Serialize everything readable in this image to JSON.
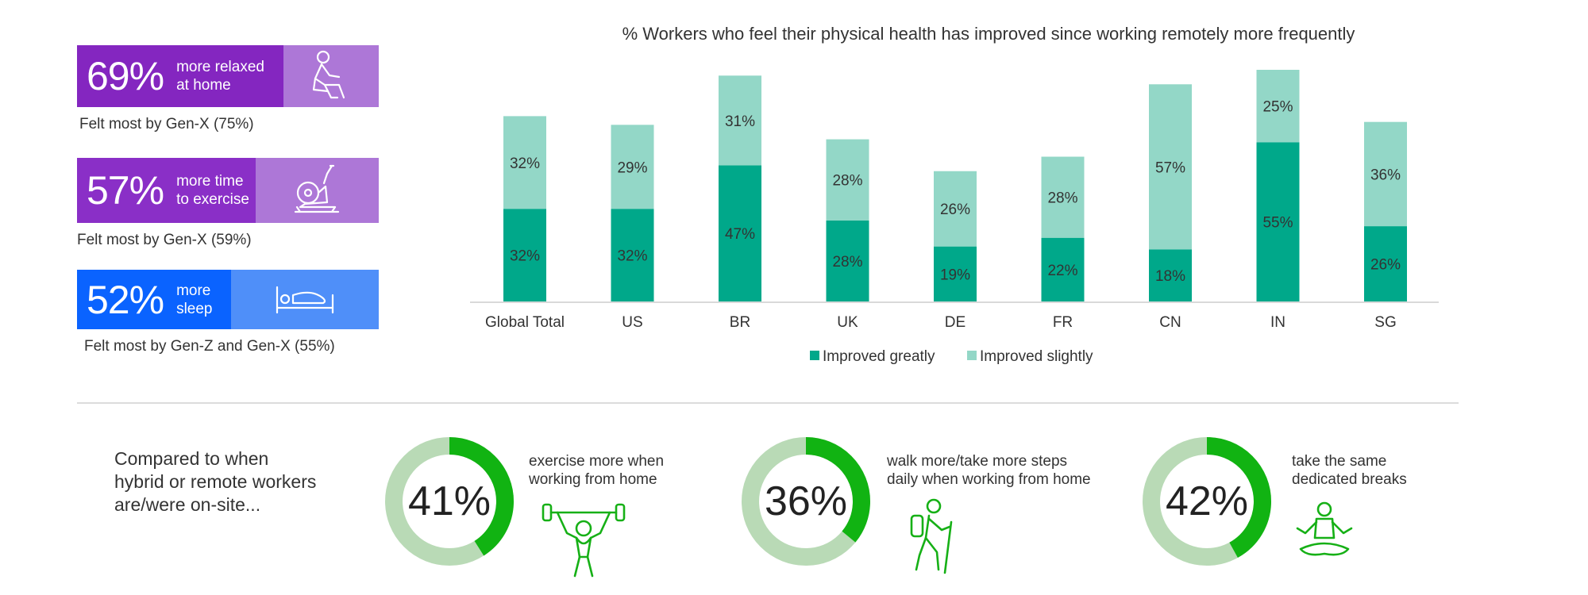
{
  "stats": [
    {
      "pct": "69%",
      "text": "more relaxed\nat home",
      "note": "Felt most by Gen-X (75%)",
      "color_main": "#8426c0",
      "color_side": "#ad77d7",
      "icon": "relaxing-person-icon"
    },
    {
      "pct": "57%",
      "text": "more time\nto exercise",
      "note": "Felt most by Gen-X (59%)",
      "color_main": "#8a2fc7",
      "color_side": "#ad77d7",
      "icon": "exercise-bike-icon"
    },
    {
      "pct": "52%",
      "text": "more\nsleep",
      "note": "Felt most by Gen-Z and Gen-X (55%)",
      "color_main": "#0a63ff",
      "color_side": "#4f8ff9",
      "icon": "bed-icon"
    }
  ],
  "chart_data": {
    "type": "bar",
    "stacked": true,
    "title": "% Workers who feel their physical health has improved since working remotely more frequently",
    "categories": [
      "Global Total",
      "US",
      "BR",
      "UK",
      "DE",
      "FR",
      "CN",
      "IN",
      "SG"
    ],
    "series": [
      {
        "name": "Improved greatly",
        "color": "#00a88a",
        "values": [
          32,
          32,
          47,
          28,
          19,
          22,
          18,
          55,
          26
        ]
      },
      {
        "name": "Improved slightly",
        "color": "#93d7c7",
        "values": [
          32,
          29,
          31,
          28,
          26,
          28,
          57,
          25,
          36
        ]
      }
    ],
    "legend": "bottom-center",
    "grid": false
  },
  "compare_text": "Compared to when\nhybrid or remote workers\nare/were on-site...",
  "donuts": [
    {
      "value": 41,
      "label": "41%",
      "caption": "exercise more when\nworking from home",
      "icon": "weightlifter-icon"
    },
    {
      "value": 36,
      "label": "36%",
      "caption": "walk more/take more steps\ndaily when working from home",
      "icon": "hiker-icon"
    },
    {
      "value": 42,
      "label": "42%",
      "caption": "take the same\ndedicated breaks",
      "icon": "meditation-icon"
    }
  ],
  "colors": {
    "donut_fill": "#11b312",
    "donut_track": "#b9dab6",
    "icon_green": "#16b016"
  }
}
